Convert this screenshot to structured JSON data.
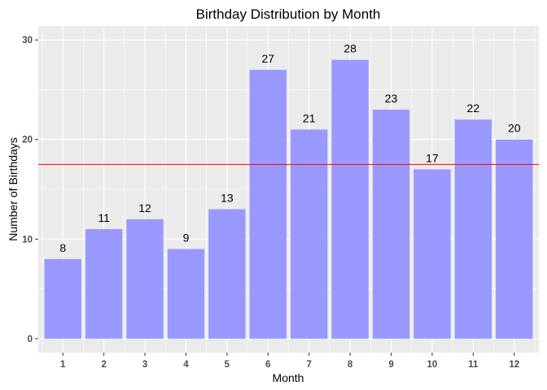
{
  "chart_data": {
    "type": "bar",
    "title": "Birthday Distribution by Month",
    "xlabel": "Month",
    "ylabel": "Number of Birthdays",
    "categories": [
      "1",
      "2",
      "3",
      "4",
      "5",
      "6",
      "7",
      "8",
      "9",
      "10",
      "11",
      "12"
    ],
    "values": [
      8,
      11,
      12,
      9,
      13,
      27,
      21,
      28,
      23,
      17,
      22,
      20
    ],
    "ylim": [
      -1.4,
      31.4
    ],
    "yticks": [
      0,
      10,
      20,
      30
    ],
    "ytick_labels": [
      "0",
      "10",
      "20",
      "30"
    ],
    "reference_line": {
      "y": 17.5,
      "color": "#ff0000"
    },
    "grid": true,
    "legend": "none",
    "colors": {
      "bar": "#9999ff",
      "panel": "#ebebeb",
      "grid_major": "#ffffff",
      "reference_line": "#ff0000"
    }
  }
}
